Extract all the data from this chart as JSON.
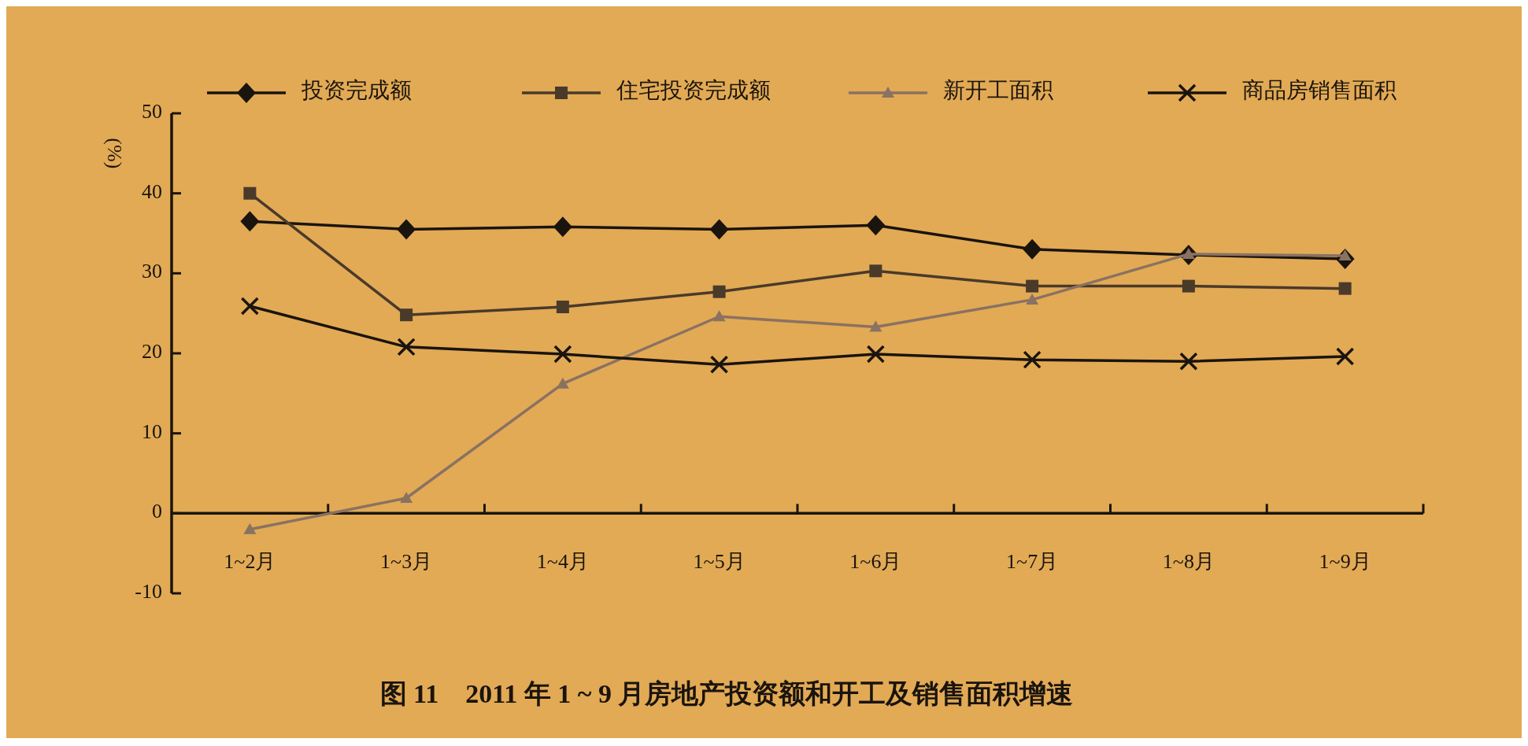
{
  "chart_data": {
    "type": "line",
    "title": "图 11　2011 年 1 ~ 9 月房地产投资额和开工及销售面积增速",
    "ylabel": "(%)",
    "categories": [
      "1~2月",
      "1~3月",
      "1~4月",
      "1~5月",
      "1~6月",
      "1~7月",
      "1~8月",
      "1~9月"
    ],
    "ylim": [
      -10,
      50
    ],
    "yticks": [
      -10,
      0,
      10,
      20,
      30,
      40,
      50
    ],
    "legend": "top",
    "grid": false,
    "line_style": "solid",
    "series": [
      {
        "name": "投资完成额",
        "color": "#1a140e",
        "marker": "diamond",
        "values": [
          36.5,
          35.5,
          35.8,
          35.5,
          36.0,
          33.0,
          32.3,
          31.8
        ]
      },
      {
        "name": "住宅投资完成额",
        "color": "#4a3a2a",
        "marker": "square",
        "values": [
          40,
          24.8,
          25.8,
          27.7,
          30.3,
          28.4,
          28.4,
          28.1
        ]
      },
      {
        "name": "新开工面积",
        "color": "#8a7262",
        "marker": "triangle",
        "values": [
          -2,
          1.9,
          16.2,
          24.6,
          23.3,
          26.7,
          32.4,
          32.2
        ]
      },
      {
        "name": "商品房销售面积",
        "color": "#1a140e",
        "marker": "cross",
        "values": [
          25.9,
          20.8,
          19.9,
          18.6,
          19.9,
          19.2,
          19.0,
          19.6
        ]
      }
    ]
  }
}
